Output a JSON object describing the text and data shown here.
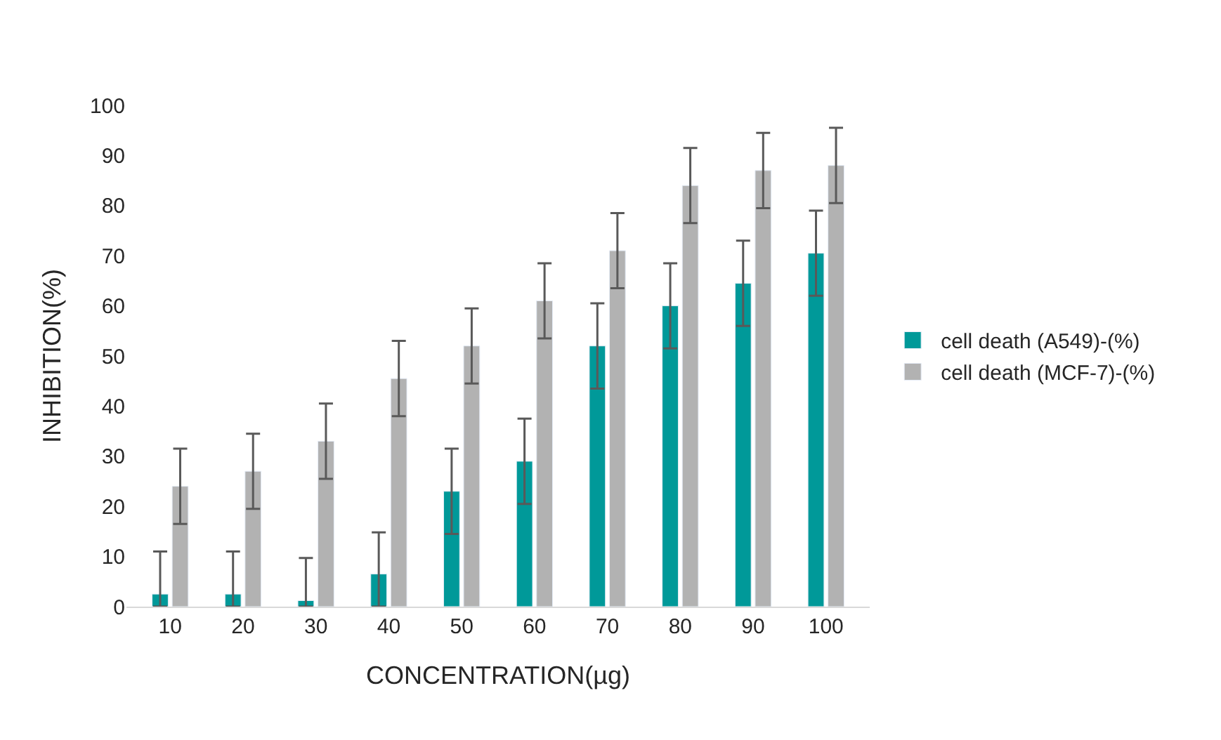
{
  "chart_data": {
    "type": "bar",
    "xlabel": "CONCENTRATION(µg)",
    "ylabel": "INHIBITION(%)",
    "categories": [
      "10",
      "20",
      "30",
      "40",
      "50",
      "60",
      "70",
      "80",
      "90",
      "100"
    ],
    "series": [
      {
        "name": "cell death (A549)-(%)",
        "color": "#009999",
        "values": [
          2.5,
          2.5,
          1.2,
          6.5,
          23,
          29,
          52,
          60,
          64.5,
          70.5
        ],
        "errors": [
          [
            0,
            11
          ],
          [
            0,
            11
          ],
          [
            0,
            9.7
          ],
          [
            0,
            14.8
          ],
          8.5,
          8.5,
          8.5,
          8.5,
          8.5,
          8.5
        ]
      },
      {
        "name": "cell death (MCF-7)-(%)",
        "color": "#b2b2b2",
        "values": [
          24,
          27,
          33,
          45.5,
          52,
          61,
          71,
          84,
          87,
          88
        ],
        "errors": [
          7.5,
          7.5,
          7.5,
          7.5,
          7.5,
          7.5,
          7.5,
          7.5,
          7.5,
          7.5
        ]
      }
    ],
    "ylim": [
      0,
      100
    ],
    "yticks": [
      0,
      10,
      20,
      30,
      40,
      50,
      60,
      70,
      80,
      90,
      100
    ],
    "legend": "right"
  }
}
